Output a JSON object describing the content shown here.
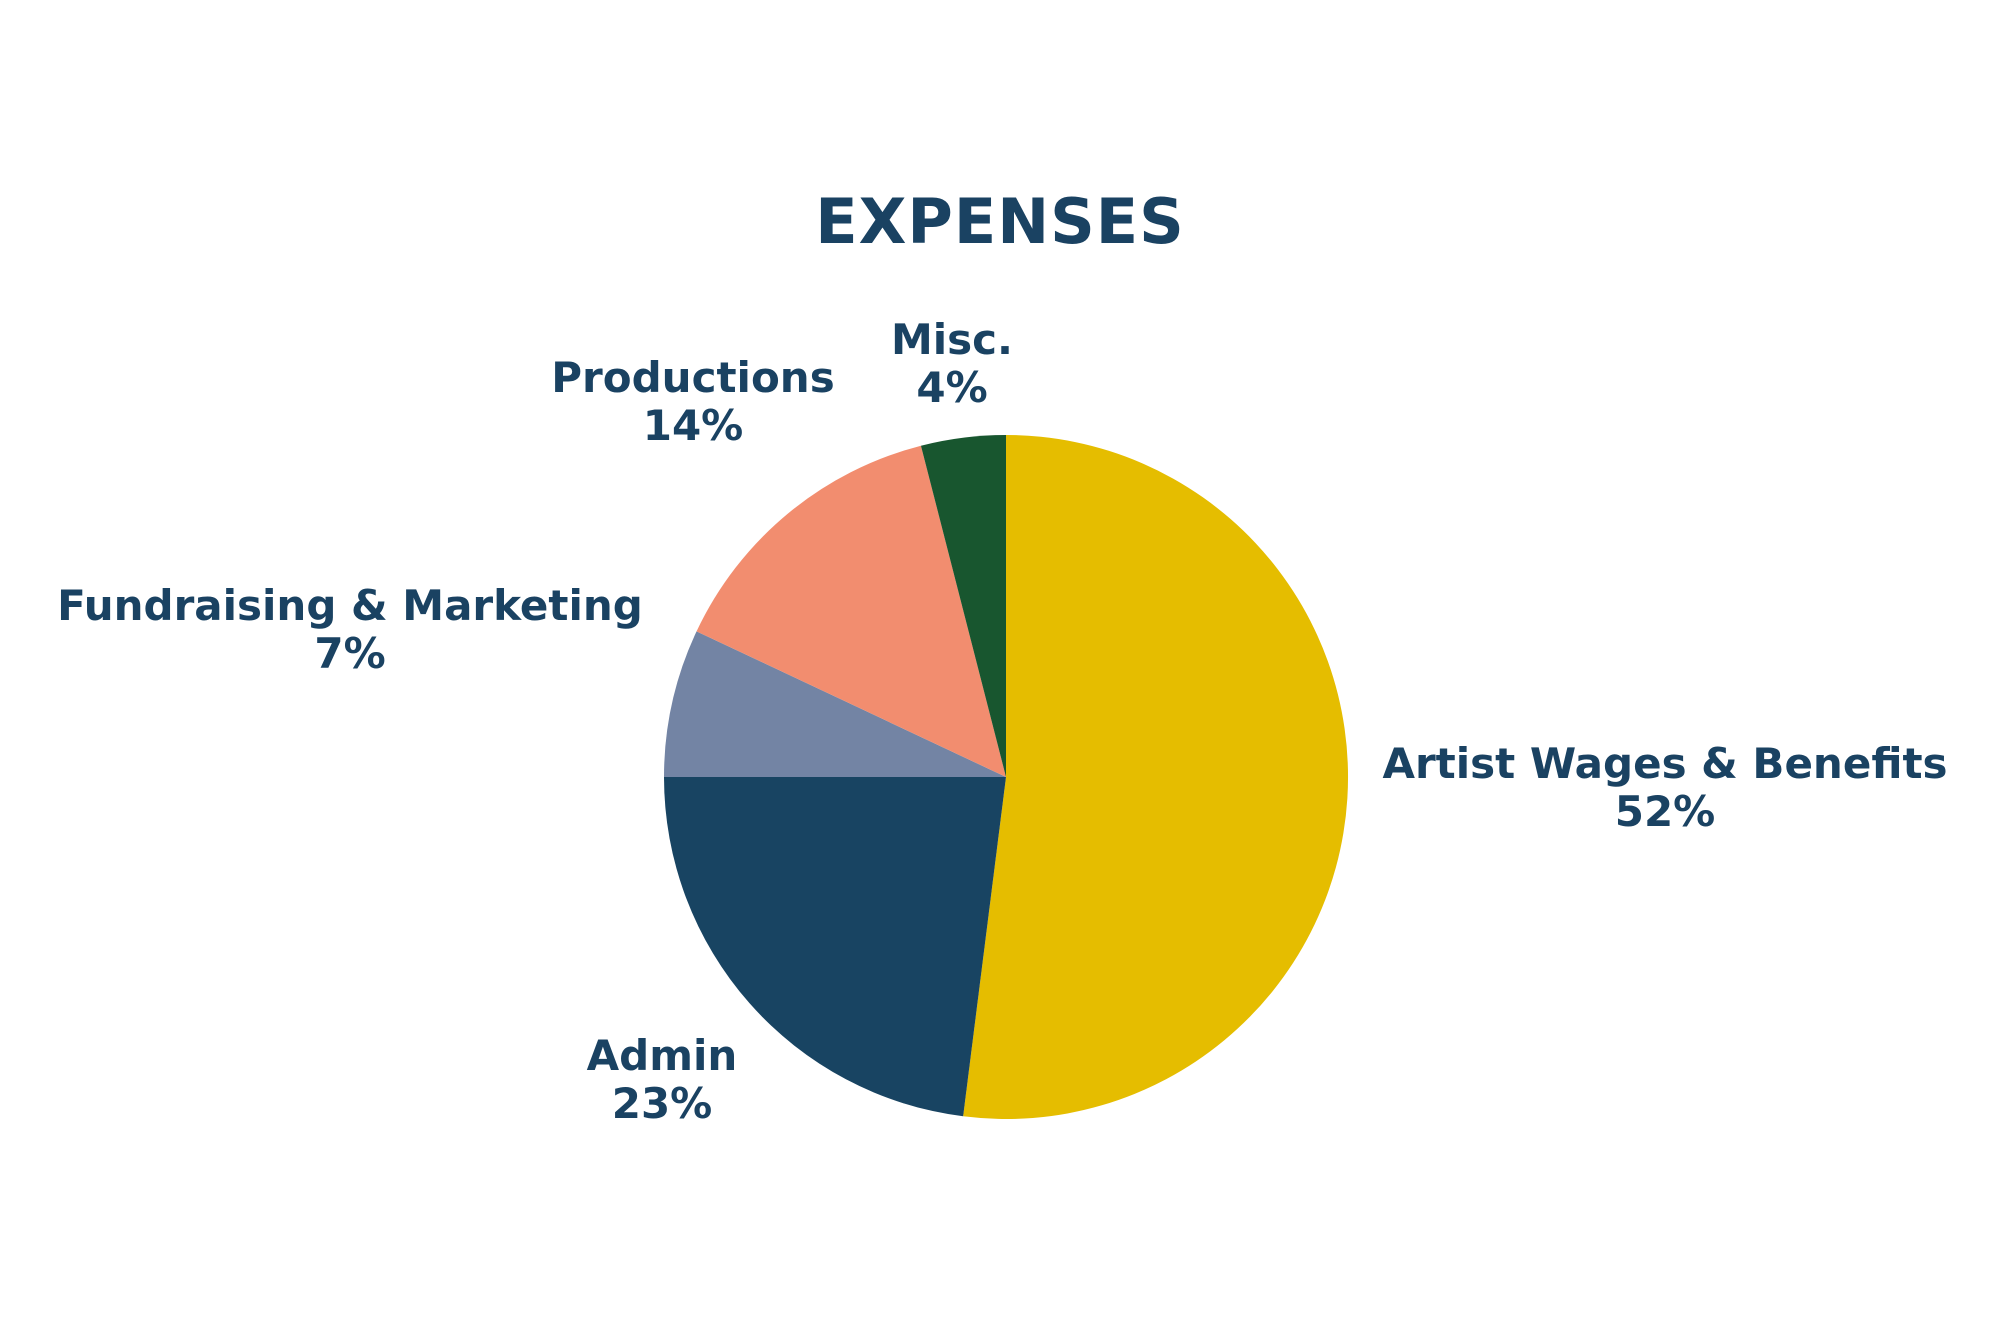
{
  "chart_data": {
    "type": "pie",
    "title": "EXPENSES",
    "slices": [
      {
        "label": "Artist Wages & Benefits",
        "value": 52,
        "value_label": "52%",
        "color": "#e5bd00"
      },
      {
        "label": "Admin",
        "value": 23,
        "value_label": "23%",
        "color": "#184462"
      },
      {
        "label": "Fundraising & Marketing",
        "value": 7,
        "value_label": "7%",
        "color": "#7384a4"
      },
      {
        "label": "Productions",
        "value": 14,
        "value_label": "14%",
        "color": "#f28d6f"
      },
      {
        "label": "Misc.",
        "value": 4,
        "value_label": "4%",
        "color": "#18562f"
      }
    ],
    "start_angle": "12 o'clock",
    "direction": "clockwise",
    "legend": "none",
    "label_color": "#1a4262"
  }
}
